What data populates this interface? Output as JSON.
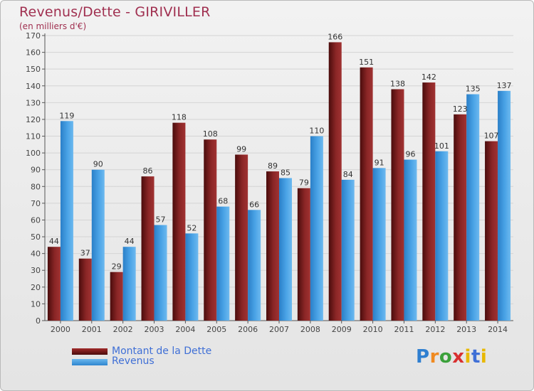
{
  "chart_data": {
    "type": "bar",
    "title": "Revenus/Dette - GIRIVILLER",
    "subtitle": "(en milliers d'€)",
    "categories": [
      "2000",
      "2001",
      "2002",
      "2003",
      "2004",
      "2005",
      "2006",
      "2007",
      "2008",
      "2009",
      "2010",
      "2011",
      "2012",
      "2013",
      "2014"
    ],
    "series": [
      {
        "name": "Montant de la Dette",
        "values": [
          44,
          37,
          29,
          86,
          118,
          108,
          99,
          89,
          79,
          166,
          151,
          138,
          142,
          123,
          107
        ],
        "color": "#7a1a1a"
      },
      {
        "name": "Revenus",
        "values": [
          119,
          90,
          44,
          57,
          52,
          68,
          66,
          85,
          110,
          84,
          91,
          96,
          101,
          135,
          137
        ],
        "color": "#4da6e8"
      }
    ],
    "ylim": [
      0,
      170
    ],
    "yticks": [
      0,
      10,
      20,
      30,
      40,
      50,
      60,
      70,
      80,
      90,
      100,
      110,
      120,
      130,
      140,
      150,
      160,
      170
    ],
    "grid": true,
    "legend_position": "bottom-left",
    "xlabel": "",
    "ylabel": ""
  },
  "brand": {
    "logo_letters": [
      "P",
      "r",
      "o",
      "x",
      "i",
      "t",
      "i"
    ]
  }
}
